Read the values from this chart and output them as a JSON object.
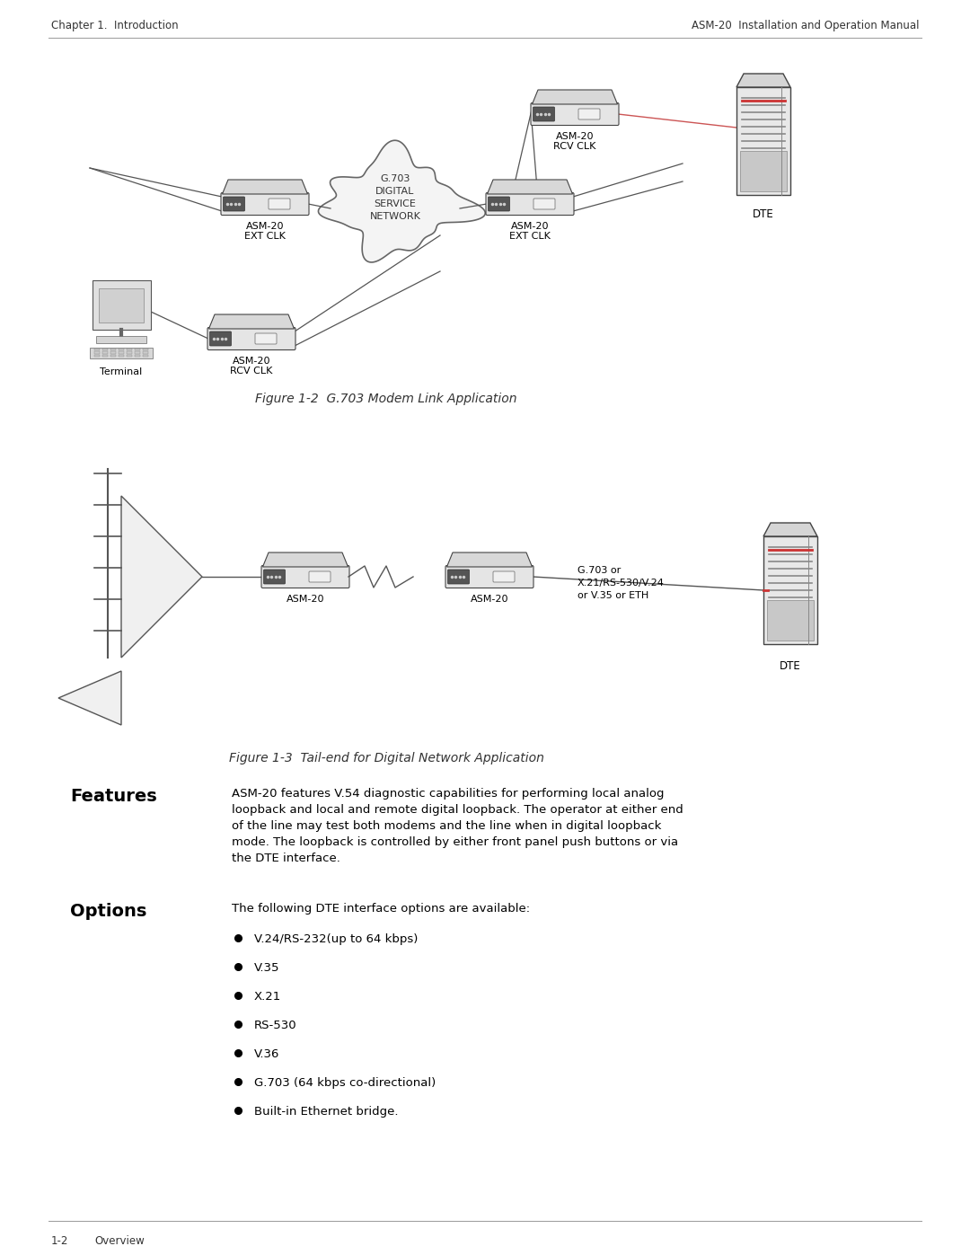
{
  "header_left": "Chapter 1.  Introduction",
  "header_right": "ASM-20  Installation and Operation Manual",
  "footer_left": "1-2",
  "footer_right": "Overview",
  "fig1_caption": "Figure 1-2  G.703 Modem Link Application",
  "fig2_caption": "Figure 1-3  Tail-end for Digital Network Application",
  "features_title": "Features",
  "features_text": "ASM-20 features V.54 diagnostic capabilities for performing local analog loopback and local and remote digital loopback. The operator at either end\nof the line may test both modems and the line when in digital loopback\nmode. The loopback is controlled by either front panel push buttons or via\nthe DTE interface.",
  "options_title": "Options",
  "options_intro": "The following DTE interface options are available:",
  "options_list": [
    "V.24/RS-232(up to 64 kbps)",
    "V.35",
    "X.21",
    "RS-530",
    "V.36",
    "G.703 (64 kbps co-directional)",
    "Built-in Ethernet bridge."
  ],
  "bg_color": "#ffffff",
  "text_color": "#000000"
}
